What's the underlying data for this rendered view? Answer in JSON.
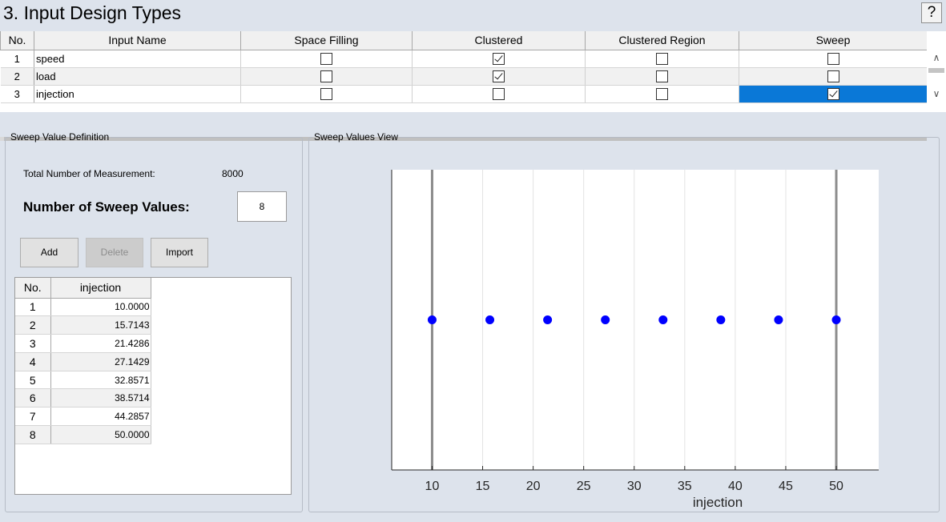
{
  "page": {
    "title": "3. Input Design Types",
    "help_label": "?"
  },
  "inputs_table": {
    "columns": [
      "No.",
      "Input Name",
      "Space Filling",
      "Clustered",
      "Clustered Region",
      "Sweep"
    ],
    "rows": [
      {
        "no": "1",
        "name": "speed",
        "space_filling": false,
        "clustered": true,
        "clustered_region": false,
        "sweep": false
      },
      {
        "no": "2",
        "name": "load",
        "space_filling": false,
        "clustered": true,
        "clustered_region": false,
        "sweep": false
      },
      {
        "no": "3",
        "name": "injection",
        "space_filling": false,
        "clustered": false,
        "clustered_region": false,
        "sweep": true
      }
    ],
    "scroll_up_icon": "chevron-up-icon",
    "scroll_down_icon": "chevron-down-icon"
  },
  "sweep_definition": {
    "legend": "Sweep Value Definition",
    "total_label": "Total Number of Measurement:",
    "total_value": "8000",
    "num_sweep_label": "Number of Sweep Values:",
    "num_sweep_value": "8",
    "buttons": {
      "add": "Add",
      "delete": "Delete",
      "import": "Import"
    },
    "table": {
      "columns": [
        "No.",
        "injection"
      ],
      "rows": [
        {
          "no": "1",
          "value": "10.0000"
        },
        {
          "no": "2",
          "value": "15.7143"
        },
        {
          "no": "3",
          "value": "21.4286"
        },
        {
          "no": "4",
          "value": "27.1429"
        },
        {
          "no": "5",
          "value": "32.8571"
        },
        {
          "no": "6",
          "value": "38.5714"
        },
        {
          "no": "7",
          "value": "44.2857"
        },
        {
          "no": "8",
          "value": "50.0000"
        }
      ]
    }
  },
  "sweep_view": {
    "legend": "Sweep Values View"
  },
  "chart_data": {
    "type": "scatter",
    "xlabel": "injection",
    "ylabel": "",
    "xlim": [
      6,
      54.2
    ],
    "ylim": [
      0,
      1
    ],
    "xticks": [
      10,
      15,
      20,
      25,
      30,
      35,
      40,
      45,
      50
    ],
    "x": [
      10.0,
      15.7143,
      21.4286,
      27.1429,
      32.8571,
      38.5714,
      44.2857,
      50.0
    ],
    "y": [
      0.5,
      0.5,
      0.5,
      0.5,
      0.5,
      0.5,
      0.5,
      0.5
    ],
    "bounds": [
      10,
      50
    ],
    "grid": true,
    "point_color": "#0000ff",
    "bound_color": "#8c8c8c",
    "grid_color": "#e3e3e3"
  }
}
